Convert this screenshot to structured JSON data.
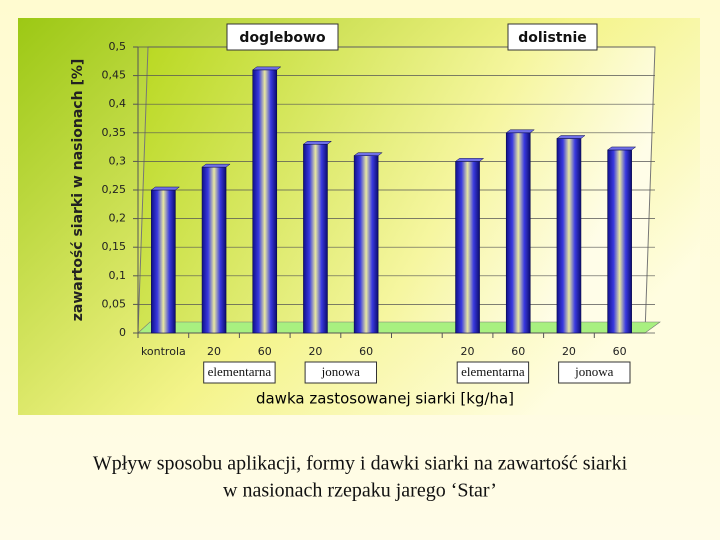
{
  "chart_data": {
    "type": "bar",
    "categories": [
      "kontrola",
      "20",
      "60",
      "20",
      "60",
      null,
      "20",
      "60",
      "20",
      "60"
    ],
    "values": [
      0.25,
      0.29,
      0.46,
      0.33,
      0.31,
      null,
      0.3,
      0.35,
      0.34,
      0.32
    ],
    "color": "#2323c8",
    "ylabel": "zawartość siarki w nasionach [%]",
    "xlabel": "dawka zastosowanej siarki [kg/ha]",
    "ylim": [
      0,
      0.5
    ],
    "yticks": [
      0,
      {
        "value": 0.05,
        "label": "0,05"
      },
      {
        "value": 0.1,
        "label": "0,1"
      },
      {
        "value": 0.15,
        "label": "0,15"
      },
      {
        "value": 0.2,
        "label": "0,2"
      },
      {
        "value": 0.25,
        "label": "0,25"
      },
      {
        "value": 0.3,
        "label": "0,3"
      },
      {
        "value": 0.35,
        "label": "0,35"
      },
      {
        "value": 0.4,
        "label": "0,4"
      },
      {
        "value": 0.45,
        "label": "0,45"
      },
      {
        "value": 0.5,
        "label": "0,5"
      }
    ],
    "grid": true,
    "group_labels": [
      "doglebowo",
      "dolistnie"
    ],
    "subgroup_labels": [
      "elementarna",
      "jonowa",
      "elementarna",
      "jonowa"
    ]
  },
  "caption": [
    "Wpływ sposobu aplikacji, formy i dawki siarki na zawartość siarki",
    "w nasionach rzepaku jarego ‘Star’"
  ]
}
